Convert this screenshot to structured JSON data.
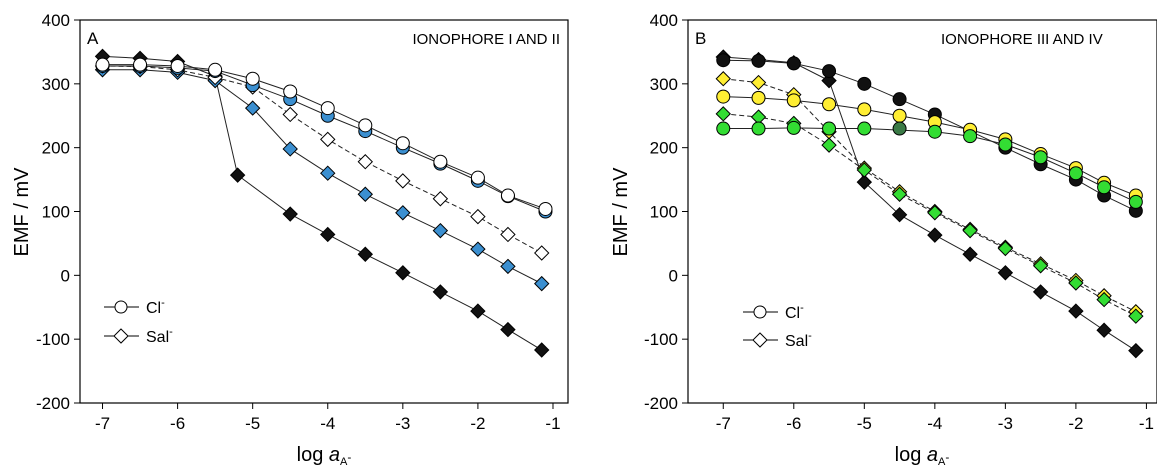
{
  "colors": {
    "white": "#ffffff",
    "blue": "#3b8fd0",
    "black": "#111111",
    "yellow": "#ffee33",
    "green": "#33dd33",
    "dark_green": "#3a7a46"
  },
  "axes": {
    "xlabel_main": "log ",
    "xlabel_italic": "a",
    "xlabel_sub": "A",
    "xlabel_sup": "-",
    "ylabel": "EMF / mV"
  },
  "legend": {
    "cl_label": "Cl",
    "cl_sup": "-",
    "sal_label": "Sal",
    "sal_sup": "-"
  },
  "chart_data": [
    {
      "type": "scatter",
      "panel": "A",
      "title": "IONOPHORE I AND II",
      "xlim": [
        -7.3,
        -0.8
      ],
      "ylim": [
        -200,
        400
      ],
      "xticks": [
        -7,
        -6,
        -5,
        -4,
        -3,
        -2,
        -1
      ],
      "yticks": [
        -200,
        -100,
        0,
        100,
        200,
        300,
        400
      ],
      "grid": false,
      "legend_position": "bottom-left",
      "series": [
        {
          "marker": "diamond",
          "color": "black",
          "line": "solid",
          "points": [
            [
              -7,
              343
            ],
            [
              -6.5,
              340
            ],
            [
              -6,
              335
            ],
            [
              -5.5,
              312
            ],
            [
              -5.2,
              157
            ],
            [
              -4.5,
              96
            ],
            [
              -4,
              64
            ],
            [
              -3.5,
              33
            ],
            [
              -3,
              4
            ],
            [
              -2.5,
              -26
            ],
            [
              -2,
              -56
            ],
            [
              -1.6,
              -85
            ],
            [
              -1.15,
              -117
            ]
          ]
        },
        {
          "marker": "diamond",
          "color": "blue",
          "line": "solid",
          "points": [
            [
              -7,
              322
            ],
            [
              -6.5,
              322
            ],
            [
              -6,
              318
            ],
            [
              -5.5,
              305
            ],
            [
              -5,
              262
            ],
            [
              -4.5,
              198
            ],
            [
              -4,
              160
            ],
            [
              -3.5,
              127
            ],
            [
              -3,
              98
            ],
            [
              -2.5,
              70
            ],
            [
              -2,
              41
            ],
            [
              -1.6,
              14
            ],
            [
              -1.15,
              -13
            ]
          ]
        },
        {
          "marker": "diamond",
          "color": "white",
          "line": "dashed",
          "points": [
            [
              -7,
              328
            ],
            [
              -6.5,
              327
            ],
            [
              -6,
              322
            ],
            [
              -5.5,
              310
            ],
            [
              -5,
              295
            ],
            [
              -4.5,
              252
            ],
            [
              -4,
              213
            ],
            [
              -3.5,
              178
            ],
            [
              -3,
              148
            ],
            [
              -2.5,
              120
            ],
            [
              -2,
              92
            ],
            [
              -1.6,
              64
            ],
            [
              -1.15,
              35
            ]
          ]
        },
        {
          "marker": "circle",
          "color": "blue",
          "line": "solid",
          "points": [
            [
              -7,
              328
            ],
            [
              -6.5,
              328
            ],
            [
              -6,
              325
            ],
            [
              -5.5,
              320
            ],
            [
              -5,
              298
            ],
            [
              -4.5,
              276
            ],
            [
              -4,
              250
            ],
            [
              -3.5,
              226
            ],
            [
              -3,
              200
            ],
            [
              -2.5,
              175
            ],
            [
              -2,
              148
            ],
            [
              -1.6,
              124
            ],
            [
              -1.1,
              100
            ]
          ]
        },
        {
          "marker": "circle",
          "color": "white",
          "line": "solid",
          "points": [
            [
              -7,
              330
            ],
            [
              -6.5,
              330
            ],
            [
              -6,
              328
            ],
            [
              -5.5,
              322
            ],
            [
              -5,
              308
            ],
            [
              -4.5,
              288
            ],
            [
              -4,
              262
            ],
            [
              -3.5,
              235
            ],
            [
              -3,
              207
            ],
            [
              -2.5,
              178
            ],
            [
              -2,
              153
            ],
            [
              -1.6,
              125
            ],
            [
              -1.1,
              104
            ]
          ]
        }
      ]
    },
    {
      "type": "scatter",
      "panel": "B",
      "title": "IONOPHORE III AND IV",
      "xlim": [
        -7.5,
        -0.85
      ],
      "ylim": [
        -200,
        400
      ],
      "xticks": [
        -7,
        -6,
        -5,
        -4,
        -3,
        -2,
        -1
      ],
      "yticks": [
        -200,
        -100,
        0,
        100,
        200,
        300,
        400
      ],
      "grid": false,
      "legend_position": "bottom-left",
      "series": [
        {
          "marker": "diamond",
          "color": "black",
          "line": "solid",
          "points": [
            [
              -7,
              342
            ],
            [
              -6.5,
              338
            ],
            [
              -6,
              333
            ],
            [
              -5.5,
              305
            ],
            [
              -5,
              146
            ],
            [
              -4.5,
              95
            ],
            [
              -4,
              63
            ],
            [
              -3.5,
              33
            ],
            [
              -3,
              4
            ],
            [
              -2.5,
              -26
            ],
            [
              -2,
              -56
            ],
            [
              -1.6,
              -86
            ],
            [
              -1.15,
              -118
            ]
          ]
        },
        {
          "marker": "diamond",
          "color": "yellow",
          "line": "dashed",
          "points": [
            [
              -7,
              308
            ],
            [
              -6.5,
              302
            ],
            [
              -6,
              283
            ],
            [
              -5.5,
              225
            ],
            [
              -5,
              168
            ],
            [
              -4.5,
              131
            ],
            [
              -4,
              100
            ],
            [
              -3.5,
              72
            ],
            [
              -3,
              44
            ],
            [
              -2.5,
              18
            ],
            [
              -2,
              -8
            ],
            [
              -1.6,
              -32
            ],
            [
              -1.15,
              -57
            ]
          ]
        },
        {
          "marker": "diamond",
          "color": "green",
          "line": "dashed",
          "points": [
            [
              -7,
              253
            ],
            [
              -6.5,
              248
            ],
            [
              -6,
              238
            ],
            [
              -5.5,
              204
            ],
            [
              -5,
              165
            ],
            [
              -4.5,
              127
            ],
            [
              -4,
              98
            ],
            [
              -3.5,
              70
            ],
            [
              -3,
              42
            ],
            [
              -2.5,
              15
            ],
            [
              -2,
              -12
            ],
            [
              -1.6,
              -38
            ],
            [
              -1.15,
              -64
            ]
          ]
        },
        {
          "marker": "circle",
          "color": "black",
          "line": "solid",
          "points": [
            [
              -7,
              337
            ],
            [
              -6.5,
              336
            ],
            [
              -6,
              332
            ],
            [
              -5.5,
              320
            ],
            [
              -5,
              300
            ],
            [
              -4.5,
              276
            ],
            [
              -4,
              252
            ],
            [
              -3.5,
              226
            ],
            [
              -3,
              200
            ],
            [
              -2.5,
              174
            ],
            [
              -2,
              150
            ],
            [
              -1.6,
              125
            ],
            [
              -1.15,
              101
            ]
          ]
        },
        {
          "marker": "circle",
          "color": "yellow",
          "line": "solid",
          "points": [
            [
              -7,
              280
            ],
            [
              -6.5,
              278
            ],
            [
              -6,
              274
            ],
            [
              -5.5,
              268
            ],
            [
              -5,
              260
            ],
            [
              -4.5,
              250
            ],
            [
              -4,
              240
            ],
            [
              -3.5,
              228
            ],
            [
              -3,
              213
            ],
            [
              -2.5,
              190
            ],
            [
              -2,
              168
            ],
            [
              -1.6,
              145
            ],
            [
              -1.15,
              125
            ]
          ]
        },
        {
          "marker": "circle",
          "color": "green",
          "line": "solid",
          "points": [
            [
              -7,
              230
            ],
            [
              -6.5,
              230
            ],
            [
              -6,
              231
            ],
            [
              -5.5,
              230
            ],
            [
              -5,
              230
            ],
            [
              -4,
              225
            ],
            [
              -3.5,
              218
            ],
            [
              -3,
              205
            ],
            [
              -2.5,
              185
            ],
            [
              -2,
              160
            ],
            [
              -1.6,
              138
            ],
            [
              -1.15,
              115
            ]
          ]
        },
        {
          "marker": "circle",
          "color": "dark_green",
          "line": "none",
          "points": [
            [
              -4.5,
              230
            ]
          ]
        }
      ]
    }
  ]
}
